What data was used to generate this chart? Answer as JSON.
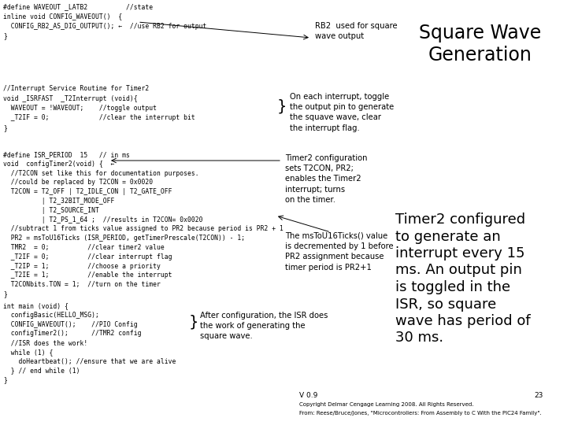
{
  "bg_color": "#ffffff",
  "title_text": "Square Wave\nGeneration",
  "title_fontsize": 17,
  "code_font_size": 5.8,
  "annotation_font_size": 7.2,
  "big_annotation_font_size": 13.0,
  "code_block1": "#define WAVEOUT _LATB2          //state\ninline void CONFIG_WAVEOUT()  {\n  CONFIG_RB2_AS_DIG_OUTPUT(); ←  //use RB2 for output\n}",
  "code_block2": "//Interrupt Service Routine for Timer2\nvoid _ISRFAST  _T2Interrupt (void){\n  WAVEOUT = !WAVEOUT;    //toggle output\n  _T2IF = 0;             //clear the interrupt bit\n}",
  "code_block3": "#define ISR_PERIOD  15   // in ms\nvoid  configTimer2(void) {  ←\n  //T2CON set like this for documentation purposes.\n  //could be replaced by T2CON = 0x0020\n  T2CON = T2_OFF | T2_IDLE_CON | T2_GATE_OFF\n          | T2_32BIT_MODE_OFF\n          | T2_SOURCE_INT\n          | T2_PS_1_64 ;  //results in T2CON= 0x0020\n  //subtract 1 from ticks value assigned to PR2 because period is PR2 + 1\n  PR2 = msToU16Ticks (ISR_PERIOD, getTimerPrescale(T2CON)) - 1;\n  TMR2  = 0;          //clear timer2 value\n  _T2IF = 0;          //clear interrupt flag\n  _T2IP = 1;          //choose a priority\n  _T2IE = 1;          //enable the interrupt\n  T2CONbits.TON = 1;  //turn on the timer\n}",
  "code_block4": "int main (void) {\n  configBasic(HELLO_MSG);\n  CONFIG_WAVEOUT();    //PIO Config\n  configTimer2();      //TMR2 config\n  //ISR does the work!\n  while (1) {\n    doHeartbeat(); //ensure that we are alive\n  } // end while (1)\n}",
  "annotation1_text": "RB2  used for square\nwave output",
  "annotation2_text": "On each interrupt, toggle\nthe output pin to generate\nthe squave wave, clear\nthe interrupt flag.",
  "annotation3_text": "Timer2 configuration\nsets T2CON, PR2;\nenables the Timer2\ninterrupt; turns\non the timer.",
  "annotation4_text": "The msToU16Ticks() value\nis decremented by 1 before\nPR2 assignment because\ntimer period is PR2+1",
  "annotation5_text": "After configuration, the ISR does\nthe work of generating the\nsquare wave.",
  "big_annotation_text": "Timer2 configured\nto generate an\ninterrupt every 15\nms. An output pin\nis toggled in the\nISR, so square\nwave has period of\n30 ms.",
  "footer_version": "V 0.9",
  "footer_page": "23",
  "footer_copyright": "Copyright Delmar Cengage Learning 2008. All Rights Reserved.",
  "footer_reference": "From: Reese/Bruce/Jones, \"Microcontrollers: From Assembly to C With the PIC24 Family\"."
}
